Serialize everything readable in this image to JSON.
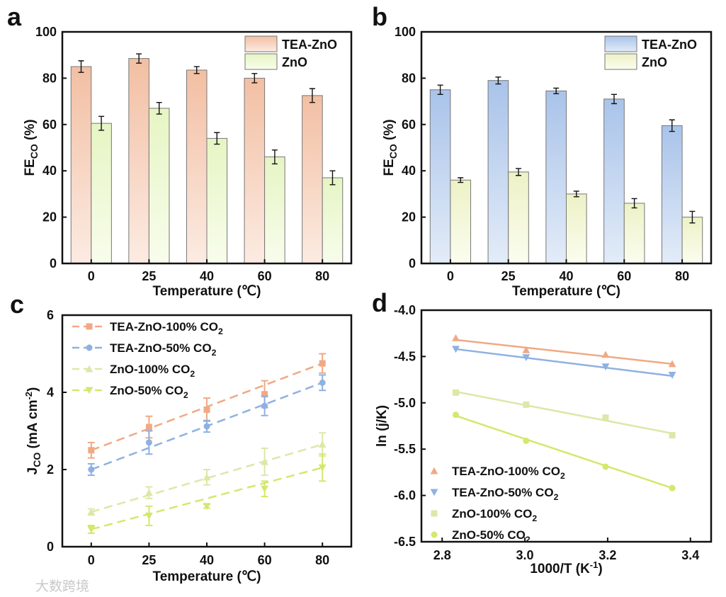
{
  "watermark": "大数跨境",
  "colors": {
    "tea_a": "#f2bfa3",
    "tea_a_light": "#fcebe2",
    "zno_a": "#e6f5c4",
    "zno_a_light": "#f8fdec",
    "tea_b": "#a9c3ea",
    "tea_b_light": "#e3ecf8",
    "zno_b": "#edf2c6",
    "zno_b_light": "#fbfdef",
    "s_tea100": "#f0a985",
    "s_tea50": "#8eb1e2",
    "s_zno100": "#dde7a8",
    "s_zno50": "#d3e86c"
  },
  "chart_data": [
    {
      "panel": "a",
      "type": "bar",
      "categories": [
        "0",
        "25",
        "40",
        "60",
        "80"
      ],
      "xlabel": "Temperature (℃)",
      "ylabel_main": "FE",
      "ylabel_sub": "CO",
      "ylabel_tail": " (%)",
      "ylim": [
        0,
        100
      ],
      "yticks": [
        "0",
        "20",
        "40",
        "60",
        "80",
        "100"
      ],
      "legend_position": "top-right",
      "series": [
        {
          "name": "TEA-ZnO",
          "values": [
            85,
            88.5,
            83.5,
            80,
            72.5
          ],
          "errors": [
            2.5,
            2,
            1.5,
            2,
            3
          ]
        },
        {
          "name": "ZnO",
          "values": [
            60.5,
            67,
            54,
            46,
            37
          ],
          "errors": [
            3,
            2.5,
            2.5,
            3,
            3
          ]
        }
      ]
    },
    {
      "panel": "b",
      "type": "bar",
      "categories": [
        "0",
        "25",
        "40",
        "60",
        "80"
      ],
      "xlabel": "Temperature (℃)",
      "ylabel_main": "FE",
      "ylabel_sub": "CO",
      "ylabel_tail": " (%)",
      "ylim": [
        0,
        100
      ],
      "yticks": [
        "0",
        "20",
        "40",
        "60",
        "80",
        "100"
      ],
      "legend_position": "top-right",
      "series": [
        {
          "name": "TEA-ZnO",
          "values": [
            75,
            79,
            74.5,
            71,
            59.5
          ],
          "errors": [
            2,
            1.5,
            1.2,
            2,
            2.5
          ]
        },
        {
          "name": "ZnO",
          "values": [
            36,
            39.5,
            30,
            26,
            20
          ],
          "errors": [
            1,
            1.5,
            1.2,
            2,
            2.5
          ]
        }
      ]
    },
    {
      "panel": "c",
      "type": "line",
      "categories": [
        "0",
        "25",
        "40",
        "60",
        "80"
      ],
      "xlabel": "Temperature (℃)",
      "ylabel_main": "J",
      "ylabel_sub": "CO",
      "ylabel_tail": " (mA cm",
      "ylabel_sup": "-2",
      "ylabel_end": ")",
      "ylim": [
        0,
        6
      ],
      "yticks": [
        "0",
        "2",
        "4",
        "6"
      ],
      "legend_position": "top-left",
      "series": [
        {
          "name": "TEA-ZnO-100% CO",
          "sub": "2",
          "marker": "square",
          "values": [
            2.5,
            3.1,
            3.55,
            3.95,
            4.75
          ],
          "errors": [
            0.2,
            0.28,
            0.3,
            0.35,
            0.25
          ]
        },
        {
          "name": "TEA-ZnO-50% CO",
          "sub": "2",
          "marker": "circle",
          "values": [
            2.0,
            2.7,
            3.12,
            3.65,
            4.25
          ],
          "errors": [
            0.15,
            0.3,
            0.15,
            0.25,
            0.2
          ]
        },
        {
          "name": "ZnO-100% CO",
          "sub": "2",
          "marker": "triangle-up",
          "values": [
            0.9,
            1.4,
            1.8,
            2.2,
            2.65
          ],
          "errors": [
            0.08,
            0.15,
            0.2,
            0.35,
            0.3
          ]
        },
        {
          "name": "ZnO-50% CO",
          "sub": "2",
          "marker": "triangle-down",
          "values": [
            0.45,
            0.8,
            1.05,
            1.5,
            2.05
          ],
          "errors": [
            0.1,
            0.25,
            0.05,
            0.2,
            0.35
          ]
        }
      ]
    },
    {
      "panel": "d",
      "type": "scatter",
      "xlabel": "1000/T (K",
      "xlabel_sup": "-1",
      "xlabel_end": ")",
      "ylabel": "ln (j/K)",
      "xlim": [
        2.75,
        3.45
      ],
      "ylim": [
        -6.5,
        -4.0
      ],
      "xticks": [
        2.8,
        3.0,
        3.2,
        3.4
      ],
      "xtick_labels": [
        "2.8",
        "3.0",
        "3.2",
        "3.4"
      ],
      "yticks": [
        -4.0,
        -4.5,
        -5.0,
        -5.5,
        -6.0,
        -6.5
      ],
      "ytick_labels": [
        "-4.0",
        "-4.5",
        "-5.0",
        "-5.5",
        "-6.0",
        "-6.5"
      ],
      "legend_position": "bottom-left",
      "x": [
        2.833,
        3.003,
        3.195,
        3.356
      ],
      "series": [
        {
          "name": "TEA-ZnO-100% CO",
          "sub": "2",
          "marker": "triangle-up",
          "values": [
            -4.3,
            -4.43,
            -4.48,
            -4.58
          ],
          "fit": [
            -4.32,
            -4.58
          ]
        },
        {
          "name": "TEA-ZnO-50% CO",
          "sub": "2",
          "marker": "triangle-down",
          "values": [
            -4.42,
            -4.51,
            -4.61,
            -4.7
          ],
          "fit": [
            -4.42,
            -4.71
          ]
        },
        {
          "name": "ZnO-100% CO",
          "sub": "2",
          "marker": "square",
          "values": [
            -4.89,
            -5.02,
            -5.16,
            -5.35
          ],
          "fit": [
            -4.88,
            -5.33
          ]
        },
        {
          "name": "ZnO-50% CO",
          "sub": "2",
          "marker": "circle",
          "values": [
            -5.13,
            -5.41,
            -5.69,
            -5.92
          ],
          "fit": [
            -5.14,
            -5.92
          ]
        }
      ]
    }
  ],
  "panel_labels": [
    "a",
    "b",
    "c",
    "d"
  ]
}
